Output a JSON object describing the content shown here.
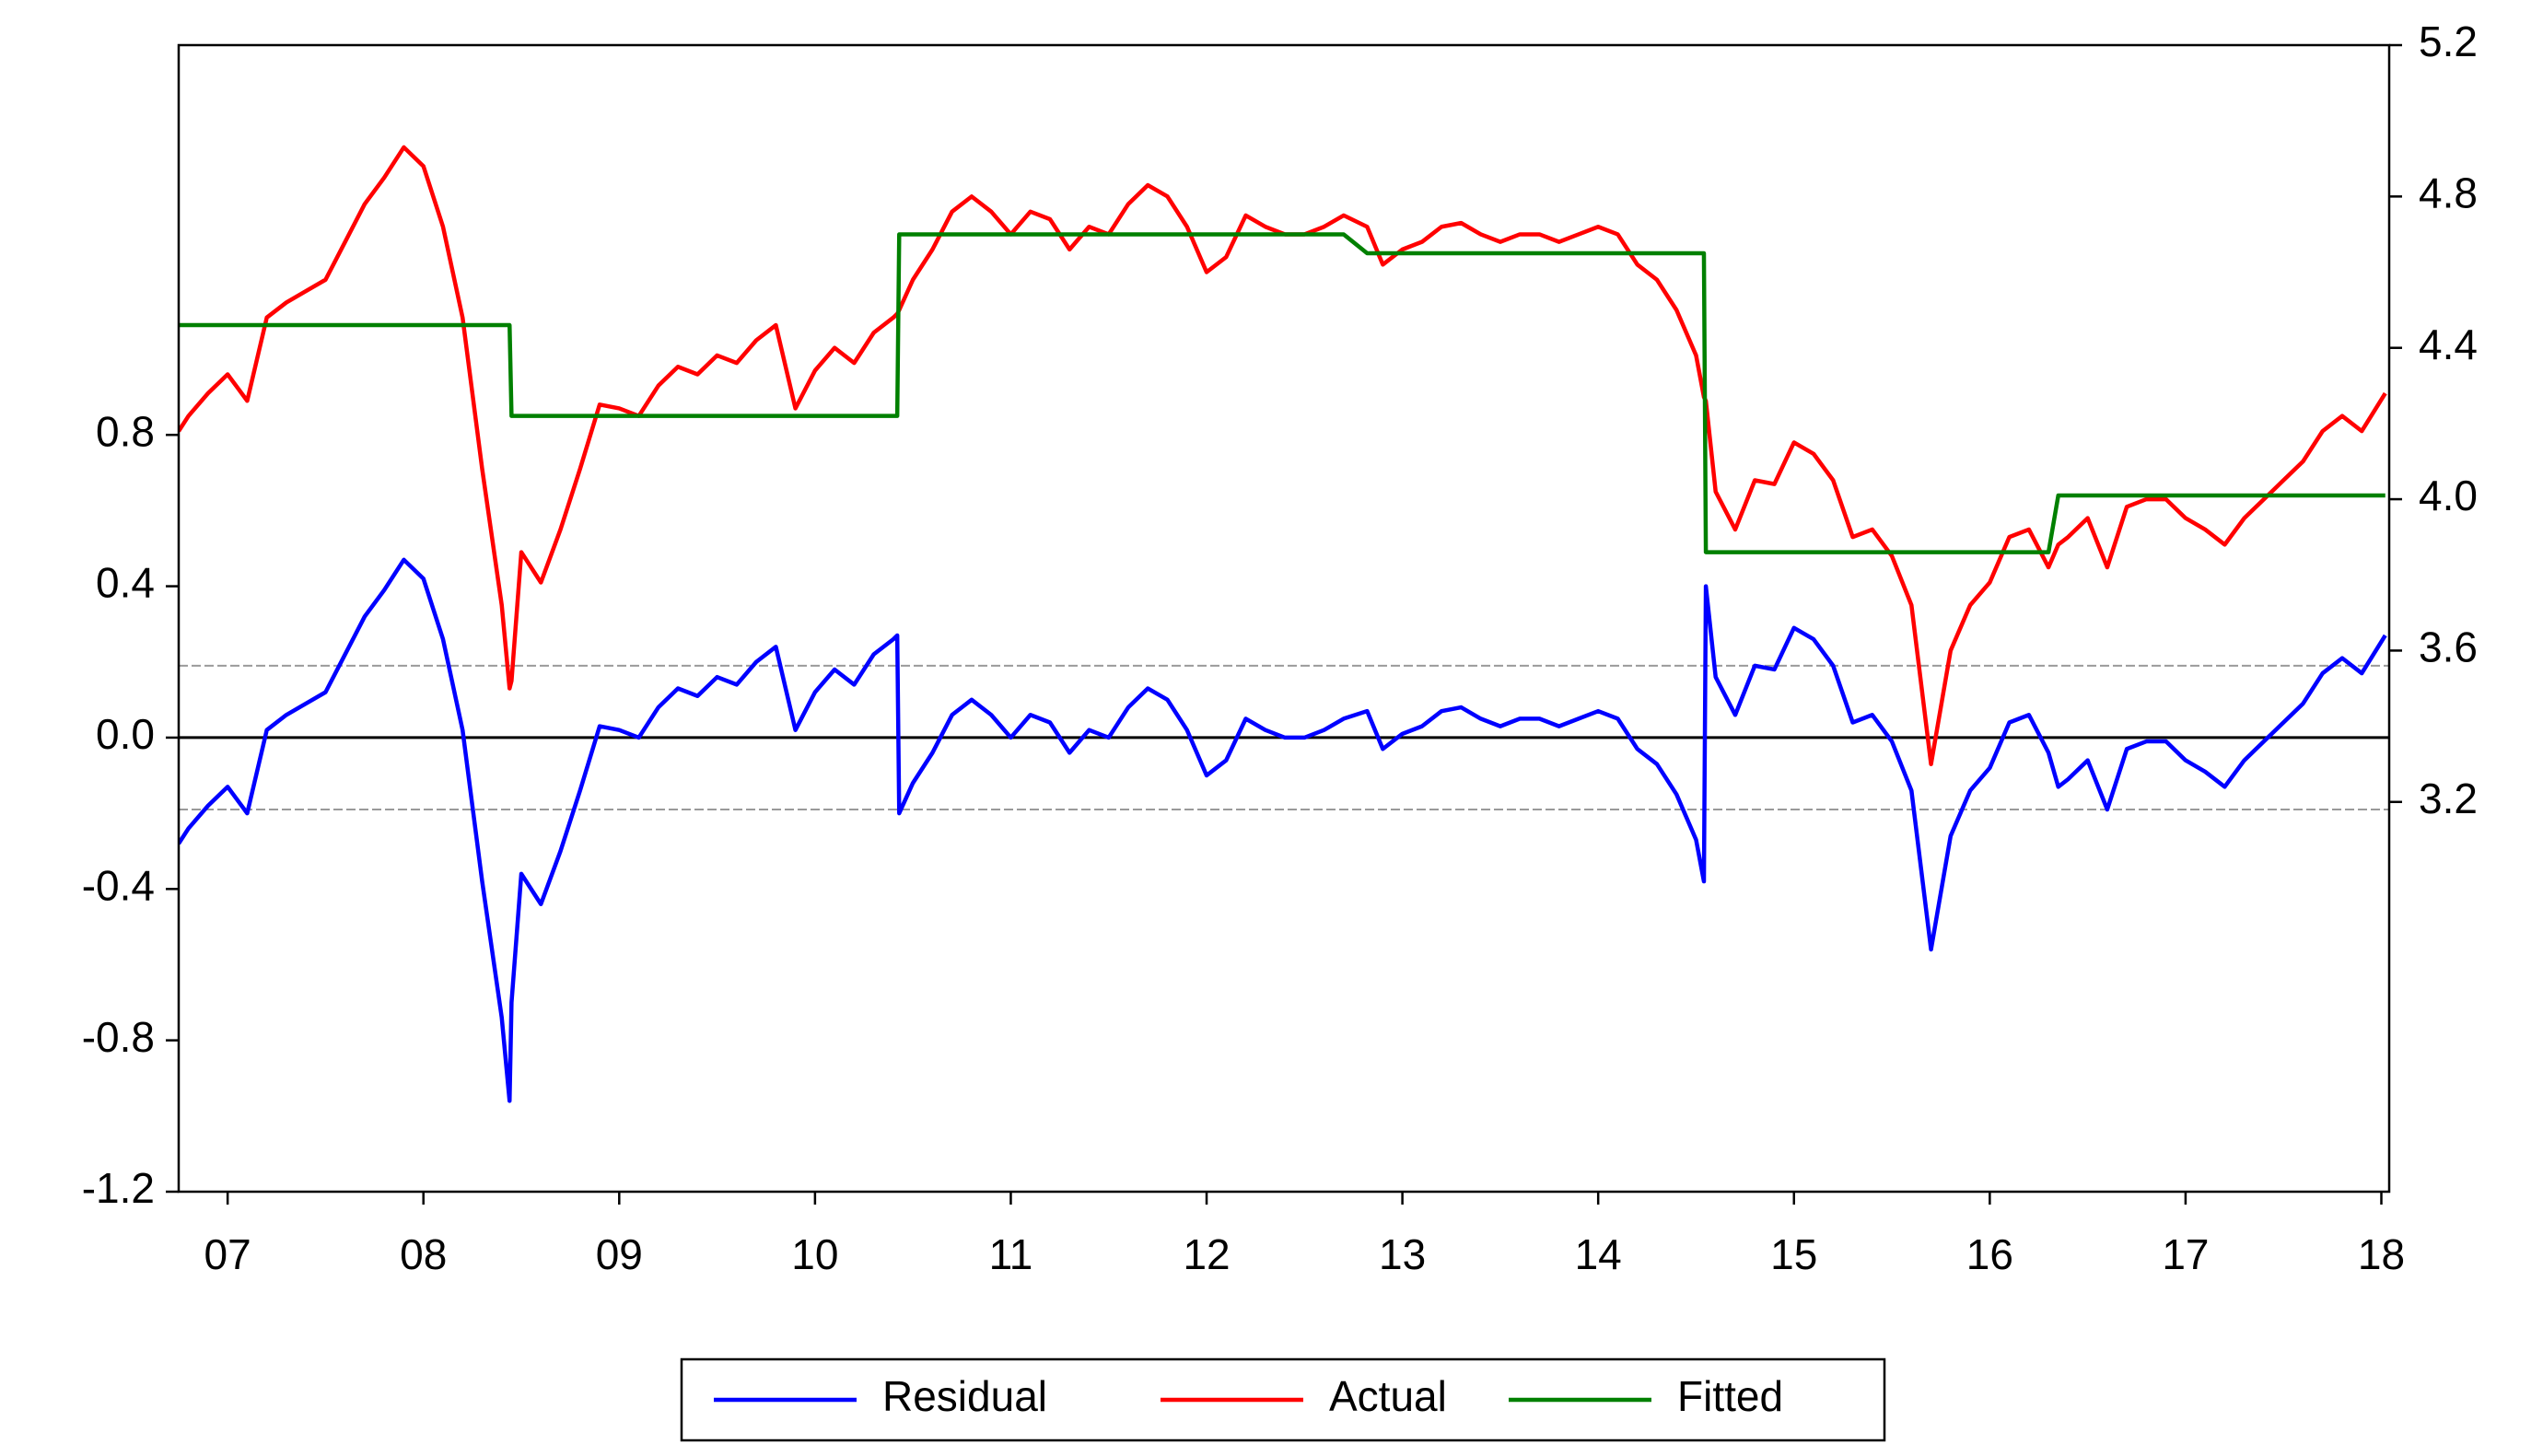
{
  "chart_data": {
    "type": "line",
    "x": [
      2007.25,
      2007.3,
      2007.4,
      2007.5,
      2007.6,
      2007.7,
      2007.8,
      2007.9,
      2008.0,
      2008.1,
      2008.2,
      2008.3,
      2008.4,
      2008.5,
      2008.6,
      2008.7,
      2008.8,
      2008.9,
      2008.94,
      2008.95,
      2009.0,
      2009.1,
      2009.2,
      2009.3,
      2009.4,
      2009.5,
      2009.6,
      2009.7,
      2009.8,
      2009.9,
      2010.0,
      2010.1,
      2010.2,
      2010.3,
      2010.4,
      2010.5,
      2010.6,
      2010.7,
      2010.8,
      2010.9,
      2010.92,
      2010.93,
      2011.0,
      2011.1,
      2011.2,
      2011.3,
      2011.4,
      2011.5,
      2011.6,
      2011.7,
      2011.8,
      2011.9,
      2012.0,
      2012.1,
      2012.2,
      2012.3,
      2012.4,
      2012.5,
      2012.6,
      2012.7,
      2012.8,
      2012.9,
      2013.0,
      2013.1,
      2013.2,
      2013.32,
      2013.4,
      2013.5,
      2013.6,
      2013.7,
      2013.8,
      2013.9,
      2014.0,
      2014.1,
      2014.2,
      2014.3,
      2014.4,
      2014.5,
      2014.6,
      2014.7,
      2014.8,
      2014.9,
      2015.0,
      2015.04,
      2015.05,
      2015.1,
      2015.2,
      2015.3,
      2015.4,
      2015.5,
      2015.6,
      2015.7,
      2015.8,
      2015.9,
      2016.0,
      2016.1,
      2016.2,
      2016.3,
      2016.4,
      2016.5,
      2016.6,
      2016.7,
      2016.8,
      2016.85,
      2016.9,
      2017.0,
      2017.1,
      2017.2,
      2017.3,
      2017.4,
      2017.5,
      2017.6,
      2017.7,
      2017.8,
      2017.9,
      2018.0,
      2018.1,
      2018.2,
      2018.3,
      2018.4,
      2018.52
    ],
    "series": [
      {
        "name": "Residual",
        "color": "#0000ff",
        "axis": "y",
        "values": [
          -0.28,
          -0.24,
          -0.18,
          -0.13,
          -0.2,
          0.02,
          0.06,
          0.09,
          0.12,
          0.22,
          0.32,
          0.39,
          0.47,
          0.42,
          0.26,
          0.02,
          -0.38,
          -0.74,
          -0.96,
          -0.7,
          -0.36,
          -0.44,
          -0.3,
          -0.14,
          0.03,
          0.02,
          0,
          0.08,
          0.13,
          0.11,
          0.16,
          0.14,
          0.2,
          0.24,
          0.02,
          0.12,
          0.18,
          0.14,
          0.22,
          0.26,
          0.27,
          -0.2,
          -0.12,
          -0.04,
          0.06,
          0.1,
          0.06,
          0,
          0.06,
          0.04,
          -0.04,
          0.02,
          0,
          0.08,
          0.13,
          0.1,
          0.02,
          -0.1,
          -0.06,
          0.05,
          0.02,
          0,
          0,
          0.02,
          0.05,
          0.07,
          -0.03,
          0.01,
          0.03,
          0.07,
          0.08,
          0.05,
          0.03,
          0.05,
          0.05,
          0.03,
          0.05,
          0.07,
          0.05,
          -0.03,
          -0.07,
          -0.15,
          -0.27,
          -0.38,
          0.4,
          0.16,
          0.06,
          0.19,
          0.18,
          0.29,
          0.26,
          0.19,
          0.04,
          0.06,
          -0.01,
          -0.14,
          -0.56,
          -0.26,
          -0.14,
          -0.08,
          0.04,
          0.06,
          -0.04,
          -0.13,
          -0.11,
          -0.06,
          -0.19,
          -0.03,
          -0.01,
          -0.01,
          -0.06,
          -0.09,
          -0.13,
          -0.06,
          -0.01,
          0.04,
          0.09,
          0.17,
          0.21,
          0.17,
          0.27
        ]
      },
      {
        "name": "Actual",
        "color": "#ff0000",
        "axis": "y2",
        "values": [
          4.18,
          4.22,
          4.28,
          4.33,
          4.26,
          4.48,
          4.52,
          4.55,
          4.58,
          4.68,
          4.78,
          4.85,
          4.93,
          4.88,
          4.72,
          4.48,
          4.08,
          3.72,
          3.5,
          3.52,
          3.86,
          3.78,
          3.92,
          4.08,
          4.25,
          4.24,
          4.22,
          4.3,
          4.35,
          4.33,
          4.38,
          4.36,
          4.42,
          4.46,
          4.24,
          4.34,
          4.4,
          4.36,
          4.44,
          4.48,
          4.49,
          4.5,
          4.58,
          4.66,
          4.76,
          4.8,
          4.76,
          4.7,
          4.76,
          4.74,
          4.66,
          4.72,
          4.7,
          4.78,
          4.83,
          4.8,
          4.72,
          4.6,
          4.64,
          4.75,
          4.72,
          4.7,
          4.7,
          4.72,
          4.75,
          4.72,
          4.62,
          4.66,
          4.68,
          4.72,
          4.73,
          4.7,
          4.68,
          4.7,
          4.7,
          4.68,
          4.7,
          4.72,
          4.7,
          4.62,
          4.58,
          4.5,
          4.38,
          4.27,
          4.26,
          4.02,
          3.92,
          4.05,
          4.04,
          4.15,
          4.12,
          4.05,
          3.9,
          3.92,
          3.85,
          3.72,
          3.3,
          3.6,
          3.72,
          3.78,
          3.9,
          3.92,
          3.82,
          3.88,
          3.9,
          3.95,
          3.82,
          3.98,
          4.0,
          4.0,
          3.95,
          3.92,
          3.88,
          3.95,
          4.0,
          4.05,
          4.1,
          4.18,
          4.22,
          4.18,
          4.28
        ]
      },
      {
        "name": "Fitted",
        "color": "#008000",
        "axis": "y2",
        "values": [
          4.46,
          4.46,
          4.46,
          4.46,
          4.46,
          4.46,
          4.46,
          4.46,
          4.46,
          4.46,
          4.46,
          4.46,
          4.46,
          4.46,
          4.46,
          4.46,
          4.46,
          4.46,
          4.46,
          4.22,
          4.22,
          4.22,
          4.22,
          4.22,
          4.22,
          4.22,
          4.22,
          4.22,
          4.22,
          4.22,
          4.22,
          4.22,
          4.22,
          4.22,
          4.22,
          4.22,
          4.22,
          4.22,
          4.22,
          4.22,
          4.22,
          4.7,
          4.7,
          4.7,
          4.7,
          4.7,
          4.7,
          4.7,
          4.7,
          4.7,
          4.7,
          4.7,
          4.7,
          4.7,
          4.7,
          4.7,
          4.7,
          4.7,
          4.7,
          4.7,
          4.7,
          4.7,
          4.7,
          4.7,
          4.7,
          4.65,
          4.65,
          4.65,
          4.65,
          4.65,
          4.65,
          4.65,
          4.65,
          4.65,
          4.65,
          4.65,
          4.65,
          4.65,
          4.65,
          4.65,
          4.65,
          4.65,
          4.65,
          4.65,
          3.86,
          3.86,
          3.86,
          3.86,
          3.86,
          3.86,
          3.86,
          3.86,
          3.86,
          3.86,
          3.86,
          3.86,
          3.86,
          3.86,
          3.86,
          3.86,
          3.86,
          3.86,
          3.86,
          4.01,
          4.01,
          4.01,
          4.01,
          4.01,
          4.01,
          4.01,
          4.01,
          4.01,
          4.01,
          4.01,
          4.01,
          4.01,
          4.01,
          4.01,
          4.01,
          4.01,
          4.01
        ]
      }
    ],
    "xlim": [
      2007.25,
      2018.54
    ],
    "xticks": [
      {
        "value": 2007.5,
        "label": "07"
      },
      {
        "value": 2008.5,
        "label": "08"
      },
      {
        "value": 2009.5,
        "label": "09"
      },
      {
        "value": 2010.5,
        "label": "10"
      },
      {
        "value": 2011.5,
        "label": "11"
      },
      {
        "value": 2012.5,
        "label": "12"
      },
      {
        "value": 2013.5,
        "label": "13"
      },
      {
        "value": 2014.5,
        "label": "14"
      },
      {
        "value": 2015.5,
        "label": "15"
      },
      {
        "value": 2016.5,
        "label": "16"
      },
      {
        "value": 2017.5,
        "label": "17"
      },
      {
        "value": 2018.5,
        "label": "18"
      }
    ],
    "ylim": [
      -1.2,
      1.83
    ],
    "yticks": [
      -1.2,
      -0.8,
      -0.4,
      {
        "value": 0,
        "label": "0.0"
      },
      0.4,
      0.8
    ],
    "y2lim": [
      2.17,
      5.2
    ],
    "y2ticks": [
      3.2,
      3.6,
      {
        "value": 4,
        "label": "4.0"
      },
      4.4,
      4.8,
      5.2
    ],
    "hlines": [
      {
        "value": 0,
        "style": "solid"
      },
      {
        "value": 0.19,
        "style": "dashed"
      },
      {
        "value": -0.19,
        "style": "dashed"
      }
    ],
    "legend": "bottom"
  }
}
